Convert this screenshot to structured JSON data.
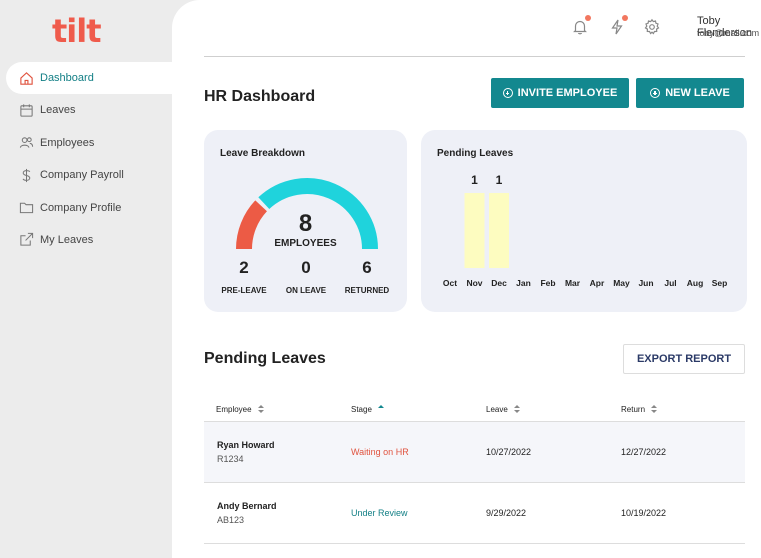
{
  "app": {
    "logo": "tilt"
  },
  "sidebar": {
    "items": [
      {
        "label": "Dashboard",
        "icon": "home-icon",
        "active": true
      },
      {
        "label": "Leaves",
        "icon": "calendar-icon"
      },
      {
        "label": "Employees",
        "icon": "users-icon"
      },
      {
        "label": "Company Payroll",
        "icon": "dollar-icon"
      },
      {
        "label": "Company Profile",
        "icon": "folder-icon"
      },
      {
        "label": "My Leaves",
        "icon": "external-link-icon"
      }
    ]
  },
  "topbar": {
    "user_name": "Toby Flenderson",
    "user_email": "toby@mail.com",
    "icons": [
      "bell-icon",
      "lightning-icon",
      "gear-icon"
    ]
  },
  "header": {
    "title": "HR Dashboard",
    "invite_label": "INVITE EMPLOYEE",
    "new_leave_label": "NEW LEAVE"
  },
  "leave_breakdown": {
    "title": "Leave Breakdown",
    "total": "8",
    "total_label": "EMPLOYEES",
    "stats": [
      {
        "value": "2",
        "label": "PRE-LEAVE"
      },
      {
        "value": "0",
        "label": "ON LEAVE"
      },
      {
        "value": "6",
        "label": "RETURNED"
      }
    ]
  },
  "pending_chart": {
    "title": "Pending Leaves"
  },
  "chart_data": [
    {
      "type": "pie",
      "categories": [
        "PRE-LEAVE",
        "ON LEAVE",
        "RETURNED"
      ],
      "values": [
        2,
        0,
        6
      ],
      "colors": [
        "#ec5b45",
        "#f5c342",
        "#1fd3dc"
      ]
    },
    {
      "type": "bar",
      "categories": [
        "Oct",
        "Nov",
        "Dec",
        "Jan",
        "Feb",
        "Mar",
        "Apr",
        "May",
        "Jun",
        "Jul",
        "Aug",
        "Sep"
      ],
      "values": [
        0,
        1,
        1,
        0,
        0,
        0,
        0,
        0,
        0,
        0,
        0,
        0
      ],
      "value_labels": [
        "",
        "1",
        "1",
        "",
        "",
        "",
        "",
        "",
        "",
        "",
        "",
        ""
      ],
      "ylim": [
        0,
        1
      ],
      "color": "#fdfcc0"
    }
  ],
  "pending_section": {
    "title": "Pending Leaves",
    "export_label": "EXPORT REPORT",
    "columns": [
      "Employee",
      "Stage",
      "Leave",
      "Return"
    ],
    "rows": [
      {
        "name": "Ryan Howard",
        "id": "R1234",
        "stage": "Waiting on HR",
        "stage_color": "#e0533f",
        "leave": "10/27/2022",
        "return": "12/27/2022"
      },
      {
        "name": "Andy Bernard",
        "id": "AB123",
        "stage": "Under Review",
        "stage_color": "#127f85",
        "leave": "9/29/2022",
        "return": "10/19/2022"
      }
    ]
  }
}
